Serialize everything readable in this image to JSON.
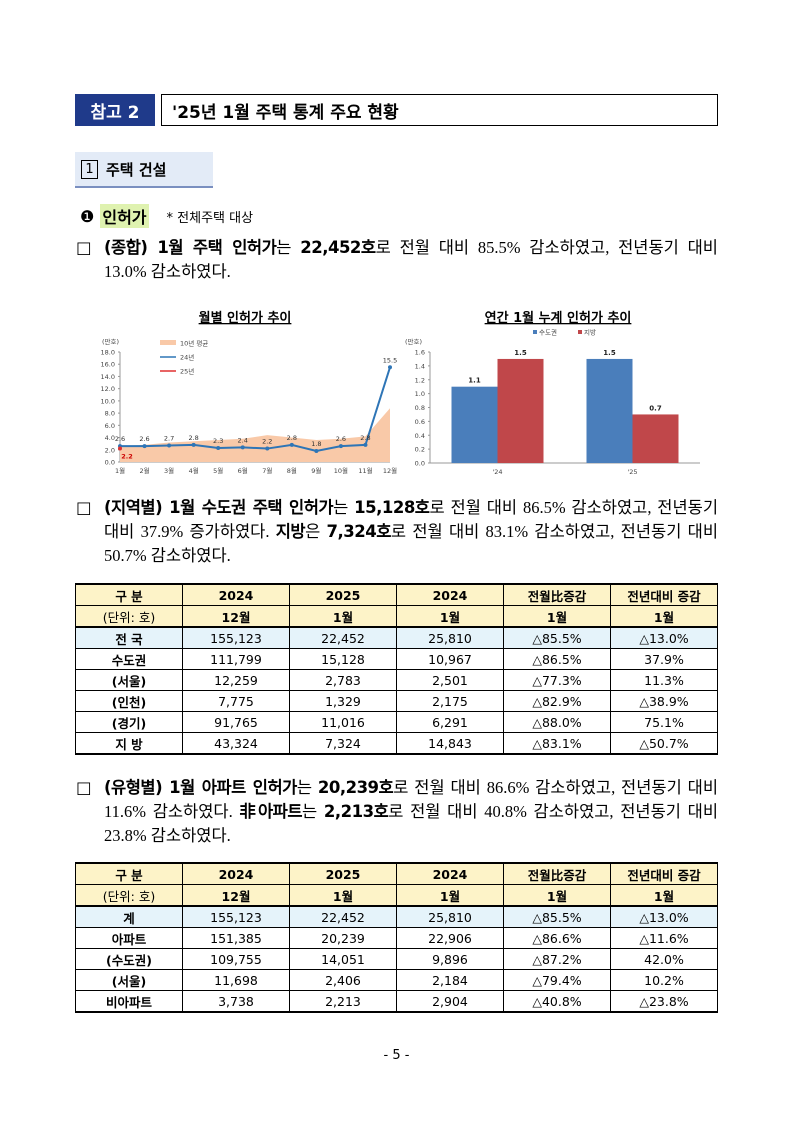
{
  "header": {
    "badge": "참고 2",
    "title": "'25년 1월 주택 통계 주요 현황"
  },
  "section": {
    "number": "1",
    "title": "주택 건설"
  },
  "subsection": {
    "bullet": "❶",
    "title": "인허가",
    "note": "* 전체주택 대상"
  },
  "paragraphs": [
    {
      "marker": "□",
      "runs": [
        {
          "text": "(종합) 1월 주택 인허가",
          "bold": true
        },
        {
          "text": "는 ",
          "bold": false
        },
        {
          "text": "22,452호",
          "bold": true
        },
        {
          "text": "로 전월 대비 85.5% 감소하였고, 전년동기 대비 13.0% 감소하였다.",
          "bold": false
        }
      ]
    },
    {
      "marker": "□",
      "runs": [
        {
          "text": "(지역별) 1월 수도권 주택 인허가",
          "bold": true
        },
        {
          "text": "는 ",
          "bold": false
        },
        {
          "text": "15,128호",
          "bold": true
        },
        {
          "text": "로 전월 대비 86.5% 감소하였고, 전년동기 대비 37.9% 증가하였다. ",
          "bold": false
        },
        {
          "text": "지방",
          "bold": true
        },
        {
          "text": "은 ",
          "bold": false
        },
        {
          "text": "7,324호",
          "bold": true
        },
        {
          "text": "로 전월 대비 83.1% 감소하였고, 전년동기 대비 50.7% 감소하였다.",
          "bold": false
        }
      ]
    },
    {
      "marker": "□",
      "runs": [
        {
          "text": "(유형별) 1월 아파트 인허가",
          "bold": true
        },
        {
          "text": "는 ",
          "bold": false
        },
        {
          "text": "20,239호",
          "bold": true
        },
        {
          "text": "로 전월 대비 86.6% 감소하였고, 전년동기 대비 11.6% 감소하였다. ",
          "bold": false
        },
        {
          "text": "非아파트",
          "bold": true
        },
        {
          "text": "는 ",
          "bold": false
        },
        {
          "text": "2,213호",
          "bold": true
        },
        {
          "text": "로 전월 대비 40.8% 감소하였고, 전년동기 대비 23.8% 감소하였다.",
          "bold": false
        }
      ]
    }
  ],
  "chart_data": [
    {
      "type": "line",
      "title": "월별 인허가 추이",
      "y_unit": "(만호)",
      "categories": [
        "1월",
        "2월",
        "3월",
        "4월",
        "5월",
        "6월",
        "7월",
        "8월",
        "9월",
        "10월",
        "11월",
        "12월"
      ],
      "ylim": [
        0,
        18
      ],
      "yticks": [
        {
          "value": 0,
          "label": "0.0"
        },
        {
          "value": 2,
          "label": "2.0"
        },
        {
          "value": 4,
          "label": "4.0"
        },
        {
          "value": 6,
          "label": "6.0"
        },
        {
          "value": 8,
          "label": "8.0"
        },
        {
          "value": 10,
          "label": "10.0"
        },
        {
          "value": 12,
          "label": "12.0"
        },
        {
          "value": 14,
          "label": "14.0"
        },
        {
          "value": 16,
          "label": "16.0"
        },
        {
          "value": 18,
          "label": "18.0"
        }
      ],
      "series": [
        {
          "name": "10년 평균",
          "color": "#f9c9a8",
          "style": "area",
          "values": [
            2.6,
            2.8,
            3.2,
            3.4,
            3.6,
            3.8,
            4.4,
            4.0,
            3.6,
            3.8,
            4.2,
            8.8
          ]
        },
        {
          "name": "24년",
          "color": "#2e75b6",
          "style": "line",
          "values": [
            2.6,
            2.6,
            2.7,
            2.8,
            2.3,
            2.4,
            2.2,
            2.8,
            1.8,
            2.6,
            2.8,
            15.5
          ]
        },
        {
          "name": "25년",
          "color": "#e03030",
          "style": "line",
          "values": [
            2.2,
            null,
            null,
            null,
            null,
            null,
            null,
            null,
            null,
            null,
            null,
            null
          ]
        }
      ]
    },
    {
      "type": "bar",
      "title": "연간 1월 누계 인허가 추이",
      "y_unit": "(만호)",
      "categories": [
        "'24",
        "'25"
      ],
      "ylim": [
        0,
        1.6
      ],
      "yticks": [
        {
          "value": 0,
          "label": "0.0"
        },
        {
          "value": 0.2,
          "label": "0.2"
        },
        {
          "value": 0.4,
          "label": "0.4"
        },
        {
          "value": 0.6,
          "label": "0.6"
        },
        {
          "value": 0.8,
          "label": "0.8"
        },
        {
          "value": 1.0,
          "label": "1.0"
        },
        {
          "value": 1.2,
          "label": "1.2"
        },
        {
          "value": 1.4,
          "label": "1.4"
        },
        {
          "value": 1.6,
          "label": "1.6"
        }
      ],
      "series": [
        {
          "name": "수도권",
          "color": "#4a7ebb",
          "values": [
            1.1,
            1.5
          ]
        },
        {
          "name": "지방",
          "color": "#c0474a",
          "values": [
            1.5,
            0.7
          ]
        }
      ]
    }
  ],
  "tables": [
    {
      "header": [
        [
          "구 분",
          "2024",
          "2025",
          "2024",
          "전월比증감",
          "전년대비 증감"
        ],
        [
          "(단위: 호)",
          "12월",
          "1월",
          "1월",
          "1월",
          "1월"
        ]
      ],
      "rows": [
        [
          "전 국",
          "155,123",
          "22,452",
          "25,810",
          "△85.5%",
          "△13.0%"
        ],
        [
          "수도권",
          "111,799",
          "15,128",
          "10,967",
          "△86.5%",
          "37.9%"
        ],
        [
          "(서울)",
          "12,259",
          "2,783",
          "2,501",
          "△77.3%",
          "11.3%"
        ],
        [
          "(인천)",
          "7,775",
          "1,329",
          "2,175",
          "△82.9%",
          "△38.9%"
        ],
        [
          "(경기)",
          "91,765",
          "11,016",
          "6,291",
          "△88.0%",
          "75.1%"
        ],
        [
          "지 방",
          "43,324",
          "7,324",
          "14,843",
          "△83.1%",
          "△50.7%"
        ]
      ]
    },
    {
      "header": [
        [
          "구 분",
          "2024",
          "2025",
          "2024",
          "전월比증감",
          "전년대비 증감"
        ],
        [
          "(단위: 호)",
          "12월",
          "1월",
          "1월",
          "1월",
          "1월"
        ]
      ],
      "rows": [
        [
          "계",
          "155,123",
          "22,452",
          "25,810",
          "△85.5%",
          "△13.0%"
        ],
        [
          "아파트",
          "151,385",
          "20,239",
          "22,906",
          "△86.6%",
          "△11.6%"
        ],
        [
          "(수도권)",
          "109,755",
          "14,051",
          "9,896",
          "△87.2%",
          "42.0%"
        ],
        [
          "(서울)",
          "11,698",
          "2,406",
          "2,184",
          "△79.4%",
          "10.2%"
        ],
        [
          "비아파트",
          "3,738",
          "2,213",
          "2,904",
          "△40.8%",
          "△23.8%"
        ]
      ]
    }
  ],
  "footer": "- 5 -"
}
